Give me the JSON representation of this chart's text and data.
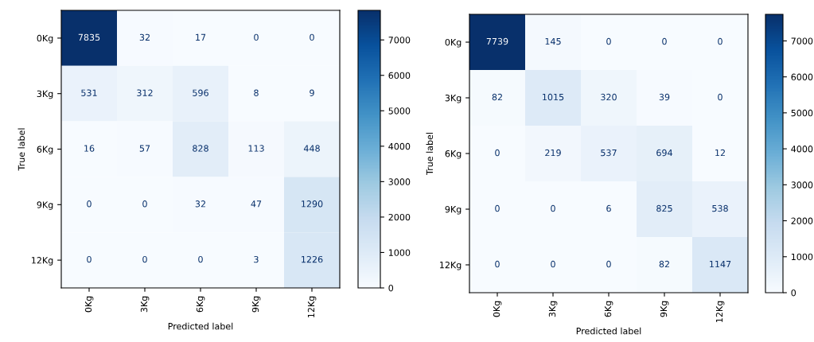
{
  "chart_data": [
    {
      "type": "heatmap",
      "xlabel": "Predicted label",
      "ylabel": "True label",
      "categories": [
        "0Kg",
        "3Kg",
        "6Kg",
        "9Kg",
        "12Kg"
      ],
      "y_categories": [
        "0Kg",
        "3Kg",
        "6Kg",
        "9Kg",
        "12Kg"
      ],
      "cells": [
        [
          7835,
          32,
          17,
          0,
          0
        ],
        [
          531,
          312,
          596,
          8,
          9
        ],
        [
          16,
          57,
          828,
          113,
          448
        ],
        [
          0,
          0,
          32,
          47,
          1290
        ],
        [
          0,
          0,
          0,
          3,
          1226
        ]
      ],
      "clim": [
        0,
        7835
      ],
      "cticks": [
        0,
        1000,
        2000,
        3000,
        4000,
        5000,
        6000,
        7000
      ],
      "data_labels": true
    },
    {
      "type": "heatmap",
      "xlabel": "Predicted label",
      "ylabel": "True label",
      "categories": [
        "0Kg",
        "3Kg",
        "6Kg",
        "9Kg",
        "12Kg"
      ],
      "y_categories": [
        "0Kg",
        "3Kg",
        "6Kg",
        "9Kg",
        "12Kg"
      ],
      "cells": [
        [
          7739,
          145,
          0,
          0,
          0
        ],
        [
          82,
          1015,
          320,
          39,
          0
        ],
        [
          0,
          219,
          537,
          694,
          12
        ],
        [
          0,
          0,
          6,
          825,
          538
        ],
        [
          0,
          0,
          0,
          82,
          1147
        ]
      ],
      "clim": [
        0,
        7739
      ],
      "cticks": [
        0,
        1000,
        2000,
        3000,
        4000,
        5000,
        6000,
        7000
      ],
      "data_labels": true
    }
  ]
}
